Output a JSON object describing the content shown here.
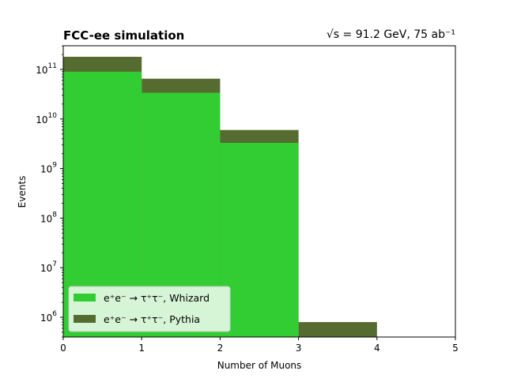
{
  "chart_data": {
    "type": "bar",
    "title_left": "FCC-ee simulation",
    "title_right": "√s = 91.2 GeV, 75 ab⁻¹",
    "xlabel": "Number of Muons",
    "ylabel": "Events",
    "x_scale": "linear",
    "y_scale": "log",
    "xlim": [
      0,
      5
    ],
    "ylim": [
      400000,
      300000000000.0
    ],
    "xticks": [
      0,
      1,
      2,
      3,
      4,
      5
    ],
    "xtick_labels": [
      "0",
      "1",
      "2",
      "3",
      "4",
      "5"
    ],
    "yticks_major": [
      1000000.0,
      10000000.0,
      100000000.0,
      1000000000.0,
      10000000000.0,
      100000000000.0
    ],
    "ytick_labels": [
      {
        "base": "10",
        "exp": "6"
      },
      {
        "base": "10",
        "exp": "7"
      },
      {
        "base": "10",
        "exp": "8"
      },
      {
        "base": "10",
        "exp": "9"
      },
      {
        "base": "10",
        "exp": "10"
      },
      {
        "base": "10",
        "exp": "11"
      }
    ],
    "bin_edges": [
      0,
      1,
      2,
      3,
      4,
      5
    ],
    "grid": false,
    "legend_position": "lower-left",
    "series": [
      {
        "name": "e⁺e⁻ → τ⁺τ⁻, Pythia",
        "color": "#556b2f",
        "values": [
          180000000000.0,
          65000000000.0,
          6000000000.0,
          800000.0,
          0
        ]
      },
      {
        "name": "e⁺e⁻ → τ⁺τ⁻, Whizard",
        "color": "#32cd32",
        "values": [
          90000000000.0,
          34000000000.0,
          3300000000.0,
          0,
          0
        ]
      }
    ],
    "legend_order": [
      1,
      0
    ]
  }
}
